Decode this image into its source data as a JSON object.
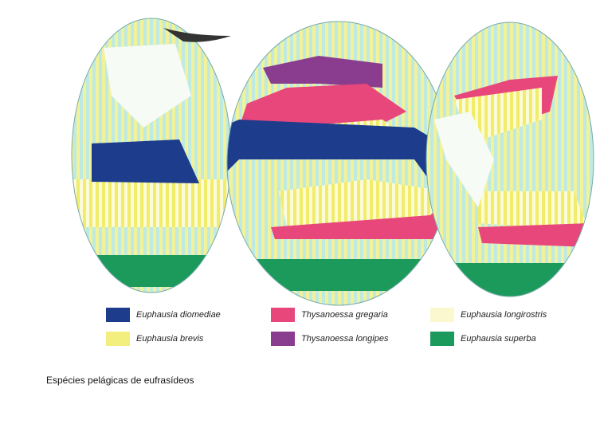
{
  "legend": {
    "items": [
      {
        "label": "Euphausia diomediae",
        "color": "#1e3c8c"
      },
      {
        "label": "Euphausia brevis",
        "color": "#f3ef7e"
      },
      {
        "label": "Thysanoessa gregaria",
        "color": "#e8477c"
      },
      {
        "label": "Thysanoessa longipes",
        "color": "#8a3d8e"
      },
      {
        "label": "Euphausia longirostris",
        "color": "#fbf8cf"
      },
      {
        "label": "Euphausia superba",
        "color": "#1c9a5c"
      }
    ]
  },
  "caption": "Espécies pelágicas de eufrasídeos"
}
